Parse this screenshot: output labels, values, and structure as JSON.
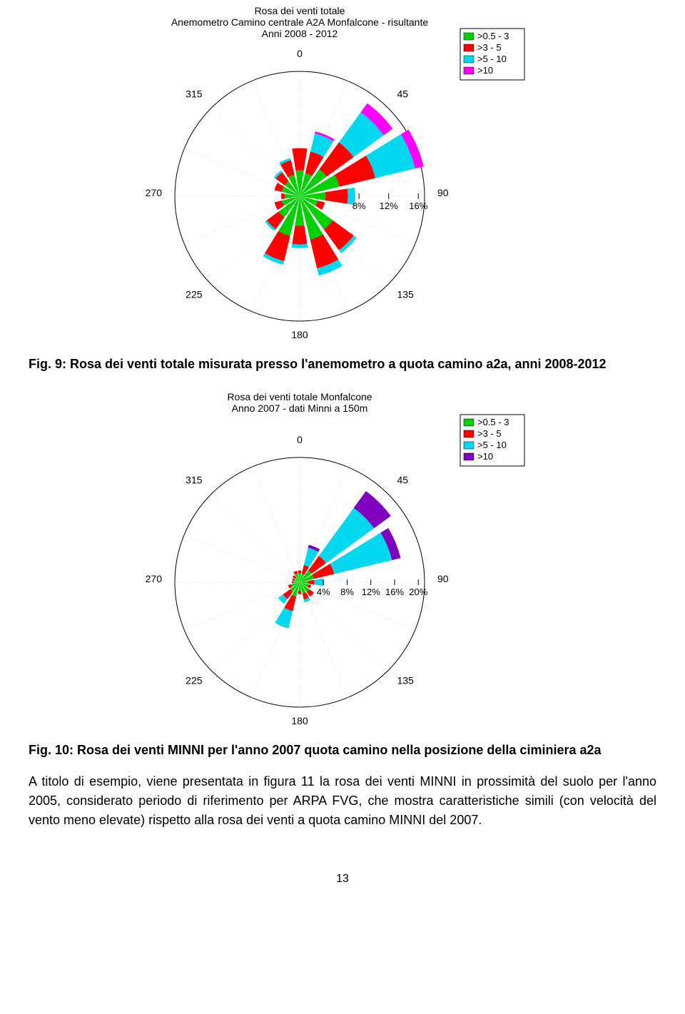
{
  "chart1": {
    "title_lines": [
      "Rosa dei venti totale",
      "Anemometro Camino centrale A2A Monfalcone - risultante",
      "Anni 2008 - 2012"
    ],
    "title_fontsize": 14,
    "compass": [
      "0",
      "45",
      "90",
      "135",
      "180",
      "225",
      "270",
      "315"
    ],
    "ring_labels": [
      "8%",
      "12%",
      "16%"
    ],
    "ring_values": [
      8,
      12,
      16
    ],
    "max_ring": 16,
    "n_sectors": 16,
    "speed_bins": [
      ">0.5 - 3",
      ">3 - 5",
      ">5 - 10",
      ">10"
    ],
    "bin_colors": [
      "#00d000",
      "#ff0000",
      "#00d8f0",
      "#ff00ff"
    ],
    "circle_color": "#000000",
    "grid_color": "#c0c0c0",
    "background": "#ffffff",
    "data": [
      [
        3.5,
        3.0,
        0,
        0
      ],
      [
        3.2,
        3.0,
        2.5,
        0.3
      ],
      [
        4.5,
        4.5,
        5.0,
        1.5
      ],
      [
        5.5,
        5.0,
        5.5,
        1.2
      ],
      [
        3.5,
        3.0,
        1.0,
        0
      ],
      [
        2.5,
        1.0,
        0,
        0
      ],
      [
        5.5,
        3.5,
        0.5,
        0
      ],
      [
        6.0,
        4.0,
        1.0,
        0
      ],
      [
        4.0,
        2.5,
        0.5,
        0
      ],
      [
        5.5,
        3.5,
        0.5,
        0
      ],
      [
        3.5,
        2.0,
        0.3,
        0
      ],
      [
        2.5,
        1.0,
        0,
        0
      ],
      [
        2.0,
        0.5,
        0,
        0
      ],
      [
        2.5,
        1.0,
        0,
        0
      ],
      [
        2.5,
        1.5,
        0.3,
        0
      ],
      [
        3.0,
        2.0,
        0.3,
        0
      ]
    ]
  },
  "caption1": "Fig. 9: Rosa dei venti totale misurata presso l'anemometro a quota camino a2a, anni 2008-2012",
  "chart2": {
    "title_lines": [
      "Rosa dei venti totale Monfalcone",
      "Anno 2007 - dati Minni a 150m"
    ],
    "title_fontsize": 14,
    "compass": [
      "0",
      "45",
      "90",
      "135",
      "180",
      "225",
      "270",
      "315"
    ],
    "ring_labels": [
      "4%",
      "8%",
      "12%",
      "16%",
      "20%"
    ],
    "ring_values": [
      4,
      8,
      12,
      16,
      20
    ],
    "max_ring": 20,
    "n_sectors": 16,
    "speed_bins": [
      ">0.5 - 3",
      ">3 - 5",
      ">5 - 10",
      ">10"
    ],
    "bin_colors": [
      "#00d000",
      "#ff0000",
      "#00d8f0",
      "#8000c0"
    ],
    "circle_color": "#000000",
    "grid_color": "#c0c0c0",
    "background": "#ffffff",
    "data": [
      [
        1.5,
        0.5,
        0,
        0
      ],
      [
        1.5,
        1.5,
        3.0,
        0.5
      ],
      [
        2.5,
        3.0,
        10.0,
        3.5
      ],
      [
        2.5,
        3.5,
        10.0,
        1.5
      ],
      [
        1.5,
        1.0,
        1.5,
        0
      ],
      [
        1.5,
        0.5,
        0,
        0
      ],
      [
        2.0,
        1.0,
        0,
        0
      ],
      [
        2.0,
        1.0,
        0.5,
        0
      ],
      [
        1.5,
        0.5,
        0,
        0
      ],
      [
        2.5,
        2.5,
        3.0,
        0
      ],
      [
        2.0,
        1.5,
        1.0,
        0
      ],
      [
        1.5,
        0.5,
        0,
        0
      ],
      [
        1.0,
        0.3,
        0,
        0
      ],
      [
        1.0,
        0.3,
        0,
        0
      ],
      [
        1.0,
        0.5,
        0,
        0
      ],
      [
        1.5,
        0.5,
        0,
        0
      ]
    ]
  },
  "caption2": "Fig. 10: Rosa dei venti MINNI per l'anno 2007 quota camino nella posizione della ciminiera a2a",
  "body_text": "A titolo di esempio, viene presentata in figura 11 la rosa dei venti MINNI in prossimità del suolo per l'anno 2005, considerato periodo di riferimento per ARPA FVG, che mostra caratteristiche simili (con velocità del vento meno elevate) rispetto alla rosa dei venti a quota camino MINNI del 2007.",
  "page_number": "13"
}
